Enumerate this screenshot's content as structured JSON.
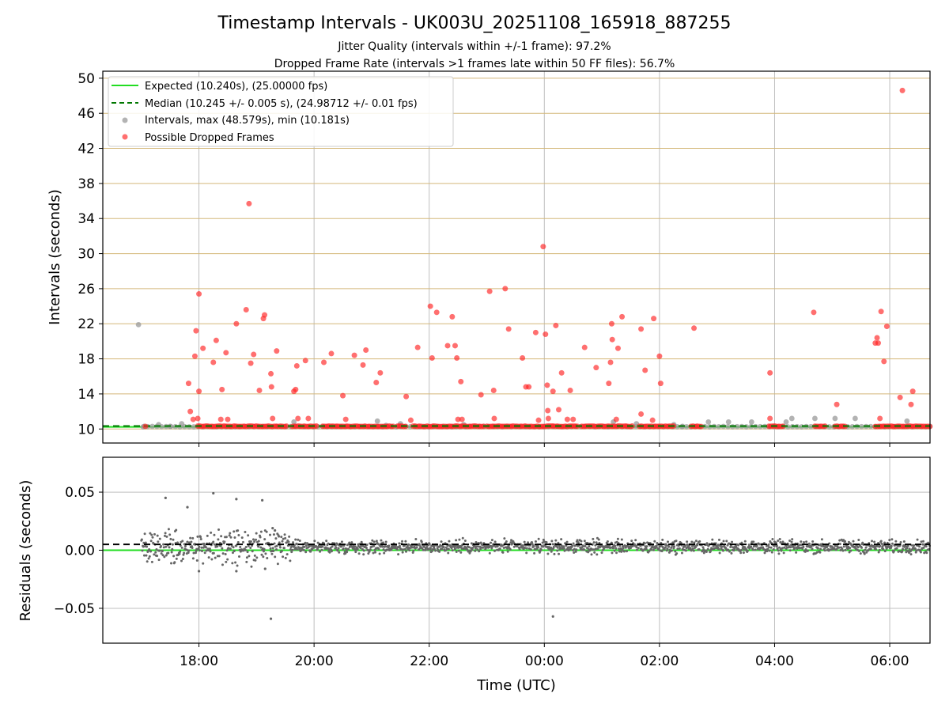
{
  "figure": {
    "title": "Timestamp Intervals - UK003U_20251108_165918_887255",
    "subtitle_jitter": "Jitter Quality (intervals within +/-1 frame): 97.2%",
    "subtitle_dropped": "Dropped Frame Rate (intervals >1 frames late within 50 FF files): 56.7%",
    "xlabel": "Time (UTC)"
  },
  "colors": {
    "expected": "#22dd22",
    "median": "#007700",
    "intervals": "#999999",
    "dropped": "#ff2222",
    "residuals": "#666666",
    "grid_top": "#d4b87a",
    "grid": "#bfbfbf"
  },
  "chart_data": [
    {
      "type": "scatter",
      "title": "Timestamp Intervals - UK003U_20251108_165918_887255",
      "xlabel": "",
      "ylabel": "Intervals (seconds)",
      "xlim_hours": [
        16.33,
        30.7
      ],
      "ylim": [
        8.4,
        50.8
      ],
      "x_ticks": [
        18,
        20,
        22,
        24,
        26,
        28,
        30
      ],
      "x_tick_labels": [
        "18:00",
        "20:00",
        "22:00",
        "00:00",
        "02:00",
        "04:00",
        "06:00"
      ],
      "y_ticks": [
        10,
        14,
        18,
        22,
        26,
        30,
        34,
        38,
        42,
        46,
        50
      ],
      "y_tick_labels": [
        "10",
        "14",
        "18",
        "22",
        "26",
        "30",
        "34",
        "38",
        "42",
        "46",
        "50"
      ],
      "grid": true,
      "legend_position": "top-left",
      "legend": [
        "Expected (10.240s), (25.00000 fps)",
        "Median (10.245 +/- 0.005 s), (24.98712 +/- 0.01 fps)",
        "Intervals, max (48.579s), min (10.181s)",
        "Possible Dropped Frames"
      ],
      "expected_value": 10.24,
      "median_value": 10.245,
      "dense_dropped_segments_hours": [
        [
          17.98,
          19.55
        ],
        [
          19.62,
          20.05
        ],
        [
          20.15,
          21.4
        ],
        [
          21.45,
          21.62
        ],
        [
          21.72,
          22.95
        ],
        [
          23.0,
          24.6
        ],
        [
          24.65,
          25.55
        ],
        [
          25.65,
          26.25
        ],
        [
          26.55,
          26.75
        ],
        [
          27.9,
          28.15
        ],
        [
          28.7,
          28.9
        ],
        [
          29.05,
          29.25
        ],
        [
          29.75,
          30.7
        ]
      ],
      "interval_points": [
        [
          16.95,
          21.9
        ],
        [
          17.05,
          10.3
        ],
        [
          17.3,
          10.5
        ],
        [
          17.5,
          10.3
        ],
        [
          17.7,
          10.6
        ],
        [
          19.65,
          10.8
        ],
        [
          21.1,
          10.9
        ],
        [
          21.25,
          10.4
        ],
        [
          21.5,
          10.6
        ],
        [
          22.6,
          10.5
        ],
        [
          25.2,
          10.8
        ],
        [
          25.6,
          10.6
        ],
        [
          26.25,
          10.5
        ],
        [
          26.4,
          10.3
        ],
        [
          26.85,
          10.8
        ],
        [
          27.2,
          10.8
        ],
        [
          27.6,
          10.8
        ],
        [
          28.2,
          10.8
        ],
        [
          28.3,
          11.2
        ],
        [
          28.7,
          11.2
        ],
        [
          29.05,
          11.2
        ],
        [
          29.4,
          11.2
        ],
        [
          30.3,
          10.9
        ],
        [
          30.7,
          10.3
        ]
      ],
      "dropped_points": [
        [
          17.07,
          10.3
        ],
        [
          17.82,
          15.2
        ],
        [
          17.85,
          12.0
        ],
        [
          17.9,
          11.1
        ],
        [
          17.93,
          18.3
        ],
        [
          17.95,
          21.2
        ],
        [
          17.98,
          11.2
        ],
        [
          18.0,
          25.4
        ],
        [
          18.0,
          14.3
        ],
        [
          18.07,
          19.2
        ],
        [
          18.25,
          17.6
        ],
        [
          18.3,
          20.1
        ],
        [
          18.38,
          11.1
        ],
        [
          18.4,
          14.5
        ],
        [
          18.47,
          18.7
        ],
        [
          18.5,
          11.1
        ],
        [
          18.65,
          22.0
        ],
        [
          18.82,
          23.6
        ],
        [
          18.87,
          35.7
        ],
        [
          18.9,
          17.5
        ],
        [
          18.95,
          18.5
        ],
        [
          19.05,
          14.4
        ],
        [
          19.12,
          22.6
        ],
        [
          19.14,
          23.0
        ],
        [
          19.25,
          16.3
        ],
        [
          19.26,
          14.8
        ],
        [
          19.28,
          11.2
        ],
        [
          19.35,
          18.9
        ],
        [
          19.65,
          14.3
        ],
        [
          19.68,
          14.5
        ],
        [
          19.7,
          17.2
        ],
        [
          19.72,
          11.2
        ],
        [
          19.85,
          17.8
        ],
        [
          19.9,
          11.2
        ],
        [
          20.17,
          17.6
        ],
        [
          20.3,
          18.6
        ],
        [
          20.5,
          13.8
        ],
        [
          20.55,
          11.1
        ],
        [
          20.7,
          18.4
        ],
        [
          20.85,
          17.3
        ],
        [
          20.9,
          19.0
        ],
        [
          21.08,
          15.3
        ],
        [
          21.15,
          16.4
        ],
        [
          21.6,
          13.7
        ],
        [
          21.68,
          11.0
        ],
        [
          21.8,
          19.3
        ],
        [
          22.02,
          24.0
        ],
        [
          22.05,
          18.1
        ],
        [
          22.13,
          23.3
        ],
        [
          22.32,
          19.5
        ],
        [
          22.4,
          22.8
        ],
        [
          22.45,
          19.5
        ],
        [
          22.48,
          18.1
        ],
        [
          22.5,
          11.1
        ],
        [
          22.55,
          15.4
        ],
        [
          22.57,
          11.1
        ],
        [
          22.9,
          13.9
        ],
        [
          23.05,
          25.7
        ],
        [
          23.12,
          14.4
        ],
        [
          23.13,
          11.2
        ],
        [
          23.32,
          26.0
        ],
        [
          23.38,
          21.4
        ],
        [
          23.62,
          18.1
        ],
        [
          23.68,
          14.8
        ],
        [
          23.73,
          14.8
        ],
        [
          23.85,
          21.0
        ],
        [
          23.9,
          11.0
        ],
        [
          23.98,
          30.8
        ],
        [
          24.02,
          20.8
        ],
        [
          24.05,
          15.0
        ],
        [
          24.06,
          12.1
        ],
        [
          24.07,
          11.2
        ],
        [
          24.15,
          14.3
        ],
        [
          24.2,
          21.8
        ],
        [
          24.25,
          12.2
        ],
        [
          24.3,
          16.4
        ],
        [
          24.4,
          11.1
        ],
        [
          24.45,
          14.4
        ],
        [
          24.5,
          11.1
        ],
        [
          24.7,
          19.3
        ],
        [
          24.9,
          17.0
        ],
        [
          25.12,
          15.2
        ],
        [
          25.15,
          17.6
        ],
        [
          25.17,
          22.0
        ],
        [
          25.18,
          20.2
        ],
        [
          25.25,
          11.1
        ],
        [
          25.28,
          19.2
        ],
        [
          25.35,
          22.8
        ],
        [
          25.68,
          21.4
        ],
        [
          25.68,
          11.7
        ],
        [
          25.75,
          16.7
        ],
        [
          25.88,
          11.0
        ],
        [
          25.9,
          22.6
        ],
        [
          26.0,
          18.3
        ],
        [
          26.02,
          15.2
        ],
        [
          26.6,
          21.5
        ],
        [
          27.92,
          16.4
        ],
        [
          27.92,
          11.2
        ],
        [
          28.68,
          23.3
        ],
        [
          29.08,
          12.8
        ],
        [
          29.75,
          19.8
        ],
        [
          29.78,
          20.4
        ],
        [
          29.8,
          19.8
        ],
        [
          29.83,
          11.2
        ],
        [
          29.85,
          23.4
        ],
        [
          29.9,
          17.7
        ],
        [
          29.95,
          21.7
        ],
        [
          30.18,
          13.6
        ],
        [
          30.22,
          48.6
        ],
        [
          30.37,
          12.8
        ],
        [
          30.4,
          14.3
        ]
      ]
    },
    {
      "type": "scatter",
      "title": "",
      "xlabel": "Time (UTC)",
      "ylabel": "Residuals (seconds)",
      "xlim_hours": [
        16.33,
        30.7
      ],
      "ylim": [
        -0.08,
        0.08
      ],
      "x_ticks": [
        18,
        20,
        22,
        24,
        26,
        28,
        30
      ],
      "x_tick_labels": [
        "18:00",
        "20:00",
        "22:00",
        "00:00",
        "02:00",
        "04:00",
        "06:00"
      ],
      "y_ticks": [
        0.05,
        0.0,
        -0.05
      ],
      "y_tick_labels": [
        "0.05",
        "0.00",
        "−0.05"
      ],
      "grid": true,
      "expected_residual": 0.0,
      "median_residual": 0.005,
      "band_center": 0.003,
      "band_spread": 0.006,
      "outliers": [
        [
          17.42,
          0.045
        ],
        [
          17.8,
          0.037
        ],
        [
          18.25,
          0.049
        ],
        [
          18.65,
          0.044
        ],
        [
          19.1,
          0.043
        ],
        [
          19.25,
          -0.059
        ],
        [
          24.15,
          -0.057
        ],
        [
          19.28,
          0.019
        ],
        [
          19.32,
          0.017
        ],
        [
          18.0,
          -0.018
        ],
        [
          18.65,
          -0.018
        ],
        [
          19.15,
          -0.016
        ]
      ]
    }
  ]
}
